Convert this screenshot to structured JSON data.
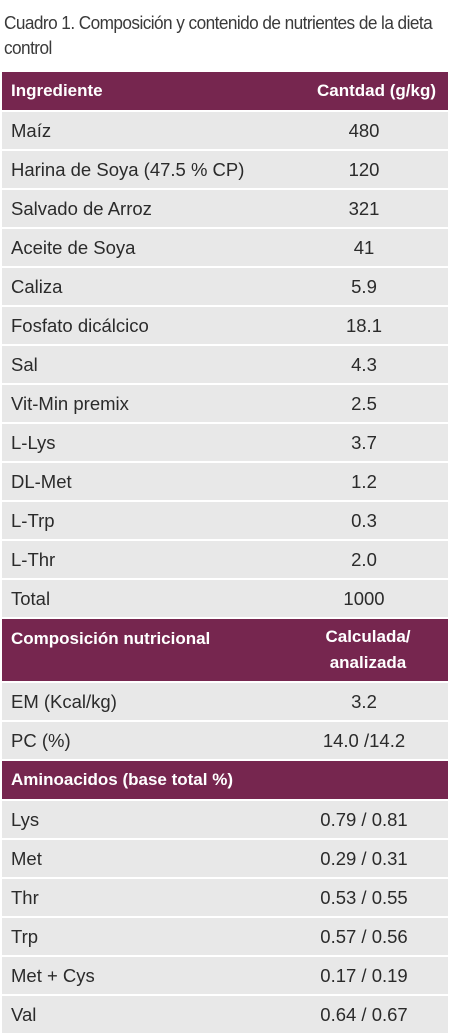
{
  "caption": "Cuadro 1. Composición y contenido de nutrientes de la dieta control",
  "section1": {
    "header": {
      "col1": "Ingrediente",
      "col2": "Cantdad (g/kg)"
    },
    "rows": [
      {
        "name": "Maíz",
        "value": "480"
      },
      {
        "name": "Harina de Soya (47.5 % CP)",
        "value": "120"
      },
      {
        "name": "Salvado de Arroz",
        "value": "321"
      },
      {
        "name": "Aceite de Soya",
        "value": "41"
      },
      {
        "name": "Caliza",
        "value": "5.9"
      },
      {
        "name": "Fosfato dicálcico",
        "value": "18.1"
      },
      {
        "name": " Sal",
        "value": "4.3"
      },
      {
        "name": "Vit-Min premix",
        "value": "2.5"
      },
      {
        "name": "L-Lys",
        "value": "3.7"
      },
      {
        "name": "DL-Met",
        "value": "1.2"
      },
      {
        "name": "L-Trp",
        "value": "0.3"
      },
      {
        "name": "L-Thr",
        "value": "2.0"
      },
      {
        "name": "Total",
        "value": "1000"
      }
    ]
  },
  "section2": {
    "header": {
      "col1": "Composición nutricional",
      "col2_line1": "Calculada/",
      "col2_line2": "analizada"
    },
    "rows": [
      {
        "name": "EM (Kcal/kg)",
        "value": "3.2"
      },
      {
        "name": "PC (%)",
        "value": "14.0 /14.2"
      }
    ]
  },
  "section3": {
    "header": {
      "col1": "Aminoacidos (base total %)"
    },
    "rows": [
      {
        "name": "Lys",
        "value": "0.79 / 0.81"
      },
      {
        "name": "Met",
        "value": "0.29 / 0.31"
      },
      {
        "name": "Thr",
        "value": "0.53 / 0.55"
      },
      {
        "name": "Trp",
        "value": "0.57 / 0.56"
      },
      {
        "name": "Met + Cys",
        "value": "0.17 / 0.19"
      },
      {
        "name": "Val",
        "value": "0.64 / 0.67"
      }
    ]
  },
  "colors": {
    "header_bg": "#76264f",
    "row_bg": "#e8e8e8",
    "header_text": "#ffffff"
  }
}
